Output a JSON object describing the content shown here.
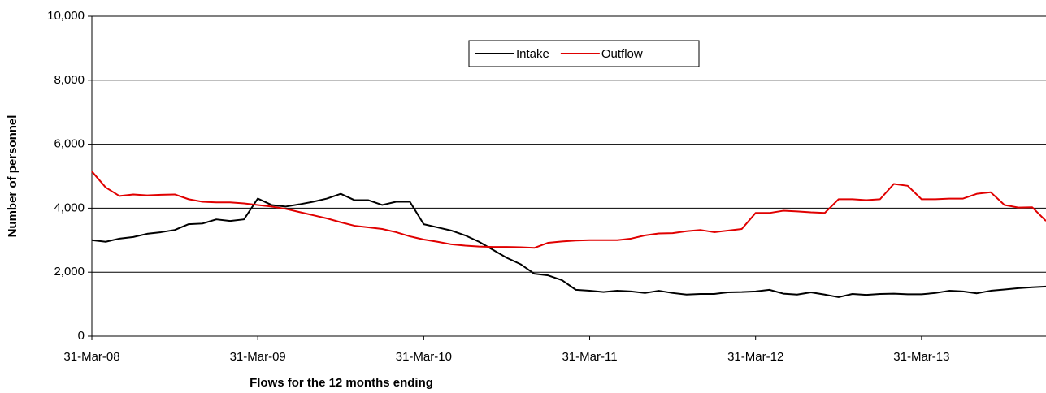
{
  "chart_data": {
    "type": "line",
    "x_label": "Flows for the 12 months ending",
    "y_label": "Number of personnel",
    "categories": [
      "31-Mar-08",
      null,
      null,
      null,
      null,
      null,
      null,
      null,
      null,
      null,
      null,
      null,
      "31-Mar-09",
      null,
      null,
      null,
      null,
      null,
      null,
      null,
      null,
      null,
      null,
      null,
      "31-Mar-10",
      null,
      null,
      null,
      null,
      null,
      null,
      null,
      null,
      null,
      null,
      null,
      "31-Mar-11",
      null,
      null,
      null,
      null,
      null,
      null,
      null,
      null,
      null,
      null,
      null,
      "31-Mar-12",
      null,
      null,
      null,
      null,
      null,
      null,
      null,
      null,
      null,
      null,
      null,
      "31-Mar-13",
      null,
      null,
      null,
      null,
      null,
      null,
      null,
      null,
      null
    ],
    "series": [
      {
        "name": "Intake",
        "color": "#000000",
        "values": [
          3000,
          2950,
          3050,
          3100,
          3200,
          3250,
          3320,
          3500,
          3520,
          3650,
          3600,
          3650,
          4300,
          4100,
          4050,
          4120,
          4200,
          4300,
          4450,
          4250,
          4250,
          4100,
          4200,
          4200,
          3500,
          3400,
          3300,
          3150,
          2950,
          2700,
          2450,
          2250,
          1950,
          1900,
          1750,
          1450,
          1420,
          1380,
          1420,
          1400,
          1350,
          1420,
          1350,
          1300,
          1320,
          1320,
          1370,
          1380,
          1400,
          1450,
          1330,
          1300,
          1370,
          1300,
          1220,
          1320,
          1290,
          1320,
          1330,
          1310,
          1310,
          1350,
          1420,
          1400,
          1340,
          1420,
          1460,
          1500,
          1530,
          1550
        ]
      },
      {
        "name": "Outflow",
        "color": "#e00000",
        "values": [
          5150,
          4650,
          4380,
          4430,
          4400,
          4420,
          4430,
          4280,
          4200,
          4180,
          4180,
          4150,
          4100,
          4050,
          3980,
          3880,
          3780,
          3680,
          3560,
          3450,
          3400,
          3350,
          3250,
          3120,
          3020,
          2950,
          2870,
          2830,
          2800,
          2790,
          2790,
          2780,
          2760,
          2920,
          2960,
          2990,
          3000,
          3000,
          3000,
          3050,
          3150,
          3210,
          3220,
          3280,
          3320,
          3250,
          3300,
          3350,
          3850,
          3850,
          3920,
          3900,
          3870,
          3850,
          4280,
          4280,
          4250,
          4280,
          4760,
          4700,
          4280,
          4280,
          4300,
          4300,
          4450,
          4500,
          4100,
          4020,
          4030,
          3600
        ]
      }
    ],
    "ylim": [
      0,
      10000
    ],
    "yticks": [
      0,
      {
        "value": 2000,
        "label": "2,000"
      },
      {
        "value": 4000,
        "label": "4,000"
      },
      {
        "value": 6000,
        "label": "6,000"
      },
      {
        "value": 8000,
        "label": "8,000"
      },
      {
        "value": 10000,
        "label": "10,000"
      }
    ],
    "grid": true,
    "legend": "top"
  }
}
